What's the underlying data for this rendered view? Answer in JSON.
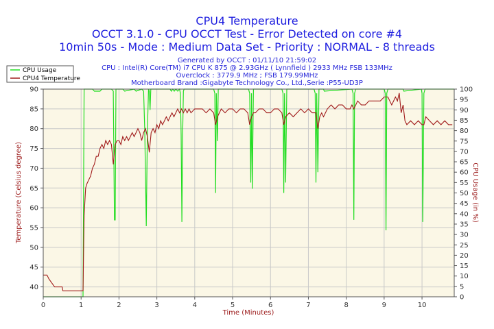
{
  "chart_data": {
    "type": "line",
    "title": "CPU4 Temperature",
    "subtitle_lines": [
      "OCCT 3.1.0 - CPU OCCT Test - Error Detected on core #4",
      "10min 50s - Mode : Medium Data Set - Priority : NORMAL - 8 threads"
    ],
    "info_lines": [
      "Generated by OCCT : 01/11/10 21:59:02",
      "CPU : Intel(R) Core(TM) i7 CPU K 875 @ 2.93GHz ( Lynnfield ) 2933 MHz FSB 133MHz",
      "Overclock : 3779.9 MHz ; FSB 179.99MHz",
      "Motherboard Brand :Gigabyte Technology Co., Ltd.,Serie :P55-UD3P"
    ],
    "xlabel": "Time (Minutes)",
    "ylabel": "Temperature (Celsius degree)",
    "y2label": "CPU Usage (in %)",
    "xlim": [
      0,
      10.85
    ],
    "ylim": [
      37.5,
      90
    ],
    "y2lim": [
      0,
      100
    ],
    "xticks": [
      0,
      1,
      2,
      3,
      4,
      5,
      6,
      7,
      8,
      9,
      10
    ],
    "yticks": [
      40,
      45,
      50,
      55,
      60,
      65,
      70,
      75,
      80,
      85,
      90
    ],
    "y2ticks": [
      0,
      5,
      10,
      15,
      20,
      25,
      30,
      35,
      40,
      45,
      50,
      55,
      60,
      65,
      70,
      75,
      80,
      85,
      90,
      95,
      100
    ],
    "grid": true,
    "legend_position": "top-left",
    "colors": {
      "plot_bg": "#fbf7e6",
      "grid": "#c8c8c8",
      "usage": "#22dd22",
      "temp": "#a01a1a",
      "title": "#1f1fdf",
      "axis_red": "#9c1b1b"
    },
    "series": [
      {
        "name": "CPU Usage",
        "axis": "right",
        "color": "#22dd22",
        "x": [
          0,
          1.05,
          1.08,
          1.3,
          1.35,
          1.5,
          1.55,
          1.8,
          1.85,
          1.88,
          1.9,
          1.92,
          2.1,
          2.15,
          2.4,
          2.45,
          2.6,
          2.65,
          2.68,
          2.72,
          2.75,
          2.78,
          2.8,
          2.82,
          2.84,
          2.9,
          3.2,
          3.35,
          3.38,
          3.42,
          3.46,
          3.5,
          3.55,
          3.6,
          3.62,
          3.64,
          3.66,
          3.68,
          3.7,
          3.72,
          4.5,
          4.53,
          4.55,
          4.57,
          4.6,
          4.62,
          5.42,
          5.45,
          5.48,
          5.5,
          5.52,
          5.55,
          6.3,
          6.33,
          6.35,
          6.37,
          6.4,
          6.43,
          7.15,
          7.18,
          7.2,
          7.22,
          7.25,
          7.28,
          7.4,
          7.42,
          8.15,
          8.18,
          8.2,
          8.22,
          8.25,
          9.0,
          9.03,
          9.05,
          9.07,
          9.1,
          9.12,
          9.5,
          9.52,
          9.98,
          10.0,
          10.02,
          10.05,
          10.08,
          10.85
        ],
        "values": [
          0,
          0,
          100,
          100,
          99,
          99,
          100,
          100,
          99,
          37,
          37,
          100,
          100,
          99,
          100,
          99,
          100,
          99,
          80,
          34,
          80,
          100,
          99,
          90,
          100,
          100,
          100,
          100,
          99,
          100,
          99,
          100,
          99,
          100,
          98,
          78,
          36,
          78,
          99,
          100,
          100,
          98,
          50,
          98,
          75,
          100,
          100,
          98,
          55,
          98,
          52,
          100,
          100,
          98,
          50,
          98,
          55,
          100,
          100,
          98,
          55,
          98,
          60,
          100,
          100,
          99,
          100,
          98,
          37,
          98,
          100,
          100,
          98,
          32,
          98,
          100,
          100,
          100,
          99,
          100,
          98,
          36,
          98,
          100,
          100
        ]
      },
      {
        "name": "CPU4 Temperature",
        "axis": "left",
        "color": "#a01a1a",
        "x": [
          0,
          0.1,
          0.15,
          0.3,
          0.5,
          0.52,
          1.0,
          1.05,
          1.08,
          1.12,
          1.15,
          1.2,
          1.25,
          1.3,
          1.35,
          1.4,
          1.45,
          1.5,
          1.55,
          1.6,
          1.65,
          1.7,
          1.75,
          1.8,
          1.85,
          1.9,
          1.95,
          2.0,
          2.05,
          2.1,
          2.15,
          2.2,
          2.25,
          2.3,
          2.35,
          2.4,
          2.45,
          2.5,
          2.55,
          2.6,
          2.65,
          2.7,
          2.75,
          2.8,
          2.85,
          2.9,
          2.95,
          3.0,
          3.05,
          3.1,
          3.15,
          3.2,
          3.25,
          3.3,
          3.35,
          3.4,
          3.45,
          3.5,
          3.55,
          3.6,
          3.65,
          3.7,
          3.75,
          3.8,
          3.85,
          3.9,
          4.0,
          4.1,
          4.2,
          4.3,
          4.4,
          4.5,
          4.55,
          4.6,
          4.65,
          4.7,
          4.8,
          4.9,
          5.0,
          5.1,
          5.2,
          5.3,
          5.4,
          5.45,
          5.5,
          5.55,
          5.6,
          5.7,
          5.8,
          5.9,
          6.0,
          6.1,
          6.2,
          6.3,
          6.35,
          6.4,
          6.5,
          6.6,
          6.7,
          6.8,
          6.9,
          7.0,
          7.1,
          7.2,
          7.25,
          7.3,
          7.35,
          7.4,
          7.5,
          7.6,
          7.7,
          7.8,
          7.9,
          8.0,
          8.1,
          8.15,
          8.2,
          8.25,
          8.3,
          8.4,
          8.5,
          8.6,
          8.7,
          8.8,
          8.9,
          9.0,
          9.1,
          9.15,
          9.2,
          9.25,
          9.3,
          9.35,
          9.4,
          9.45,
          9.5,
          9.55,
          9.6,
          9.7,
          9.8,
          9.9,
          10.0,
          10.05,
          10.1,
          10.2,
          10.3,
          10.4,
          10.5,
          10.6,
          10.7,
          10.8
        ],
        "values": [
          43,
          43,
          42,
          40,
          40,
          39,
          39,
          39,
          58,
          65,
          66,
          67,
          68,
          70,
          71,
          73,
          73,
          75,
          76,
          75,
          77,
          76,
          77,
          76,
          71,
          76,
          77,
          77,
          76,
          78,
          77,
          78,
          77,
          78,
          79,
          78,
          79,
          80,
          79,
          77,
          79,
          80,
          78,
          74,
          79,
          80,
          79,
          81,
          80,
          82,
          81,
          82,
          83,
          82,
          83,
          84,
          83,
          84,
          85,
          84,
          85,
          84,
          85,
          84,
          85,
          84,
          85,
          85,
          85,
          84,
          85,
          84,
          81,
          83,
          84,
          85,
          84,
          85,
          85,
          84,
          85,
          85,
          84,
          81,
          83,
          84,
          84,
          85,
          85,
          84,
          84,
          85,
          85,
          84,
          81,
          83,
          84,
          83,
          84,
          85,
          84,
          85,
          84,
          84,
          80,
          83,
          84,
          83,
          85,
          86,
          85,
          86,
          86,
          85,
          85,
          86,
          85,
          86,
          87,
          86,
          86,
          87,
          87,
          87,
          87,
          88,
          88,
          87,
          86,
          87,
          88,
          87,
          89,
          84,
          86,
          82,
          81,
          82,
          81,
          82,
          81,
          81,
          83,
          82,
          81,
          82,
          81,
          82,
          81,
          81
        ]
      }
    ]
  }
}
